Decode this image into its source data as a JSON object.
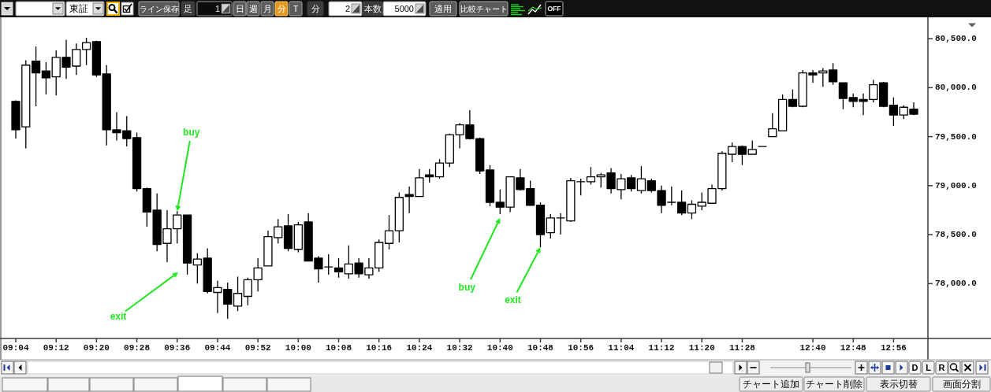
{
  "chart_data": {
    "type": "candlestick",
    "categories": [
      "09:04",
      null,
      null,
      null,
      "09:12",
      null,
      null,
      null,
      "09:20",
      null,
      null,
      null,
      "09:28",
      null,
      null,
      null,
      "09:36",
      null,
      null,
      null,
      "09:44",
      null,
      null,
      null,
      "09:52",
      null,
      null,
      null,
      "10:00",
      null,
      null,
      null,
      "10:08",
      null,
      null,
      null,
      "10:16",
      null,
      null,
      null,
      "10:24",
      null,
      null,
      null,
      "10:32",
      null,
      null,
      null,
      "10:40",
      null,
      null,
      null,
      "10:48",
      null,
      null,
      null,
      "10:56",
      null,
      null,
      null,
      "11:04",
      null,
      null,
      null,
      "11:12",
      null,
      null,
      null,
      "11:20",
      null,
      null,
      null,
      "11:28",
      null,
      null,
      null,
      null,
      null,
      null,
      "12:40",
      null,
      null,
      null,
      "12:48",
      null,
      null,
      null,
      "12:56",
      null,
      null
    ],
    "ohlc": [
      [
        79860,
        79870,
        79480,
        79570
      ],
      [
        79600,
        80280,
        79380,
        80230
      ],
      [
        80270,
        80420,
        79810,
        80150
      ],
      [
        80170,
        80260,
        79930,
        80100
      ],
      [
        80110,
        80380,
        79920,
        80310
      ],
      [
        80310,
        80490,
        80090,
        80210
      ],
      [
        80220,
        80450,
        80130,
        80390
      ],
      [
        80390,
        80510,
        80230,
        80460
      ],
      [
        80470,
        80480,
        80110,
        80130
      ],
      [
        80140,
        80230,
        79410,
        79570
      ],
      [
        79570,
        79750,
        79460,
        79540
      ],
      [
        79560,
        79710,
        79400,
        79480
      ],
      [
        79490,
        79540,
        78940,
        78970
      ],
      [
        78970,
        78980,
        78580,
        78730
      ],
      [
        78750,
        78920,
        78330,
        78400
      ],
      [
        78410,
        78750,
        78220,
        78560
      ],
      [
        78560,
        78740,
        78410,
        78700
      ],
      [
        78700,
        78700,
        78090,
        78210
      ],
      [
        78190,
        78310,
        78000,
        78250
      ],
      [
        78260,
        78360,
        77900,
        77920
      ],
      [
        77910,
        78030,
        77700,
        77960
      ],
      [
        77940,
        78010,
        77640,
        77790
      ],
      [
        77770,
        78070,
        77720,
        77900
      ],
      [
        77870,
        78060,
        77780,
        78040
      ],
      [
        78040,
        78260,
        77920,
        78160
      ],
      [
        78180,
        78540,
        78180,
        78480
      ],
      [
        78470,
        78660,
        78410,
        78580
      ],
      [
        78590,
        78710,
        78330,
        78360
      ],
      [
        78350,
        78630,
        78320,
        78600
      ],
      [
        78630,
        78720,
        78230,
        78230
      ],
      [
        78260,
        78280,
        78010,
        78150
      ],
      [
        78170,
        78300,
        78090,
        78170
      ],
      [
        78160,
        78260,
        78060,
        78120
      ],
      [
        78100,
        78390,
        78050,
        78200
      ],
      [
        78210,
        78260,
        78060,
        78100
      ],
      [
        78090,
        78260,
        78050,
        78160
      ],
      [
        78160,
        78450,
        78120,
        78420
      ],
      [
        78410,
        78700,
        78350,
        78540
      ],
      [
        78540,
        78930,
        78420,
        78880
      ],
      [
        78910,
        78990,
        78720,
        78890
      ],
      [
        78890,
        79170,
        78890,
        79080
      ],
      [
        79110,
        79170,
        79030,
        79090
      ],
      [
        79090,
        79270,
        79070,
        79230
      ],
      [
        79230,
        79530,
        79190,
        79520
      ],
      [
        79520,
        79640,
        79380,
        79620
      ],
      [
        79620,
        79770,
        79470,
        79480
      ],
      [
        79480,
        79490,
        79120,
        79150
      ],
      [
        79160,
        79210,
        78790,
        78830
      ],
      [
        78830,
        78960,
        78710,
        78780
      ],
      [
        78780,
        79090,
        78730,
        79090
      ],
      [
        79080,
        79170,
        78950,
        78960
      ],
      [
        78970,
        79050,
        78800,
        78800
      ],
      [
        78800,
        78830,
        78370,
        78500
      ],
      [
        78520,
        78710,
        78460,
        78670
      ],
      [
        78670,
        78720,
        78500,
        78670
      ],
      [
        78640,
        79080,
        78630,
        79050
      ],
      [
        79040,
        79070,
        78900,
        79040
      ],
      [
        79040,
        79190,
        79010,
        79090
      ],
      [
        79090,
        79130,
        78980,
        79110
      ],
      [
        79130,
        79180,
        78920,
        78970
      ],
      [
        78960,
        79120,
        78860,
        79070
      ],
      [
        79080,
        79110,
        78940,
        78970
      ],
      [
        78950,
        79200,
        78920,
        79070
      ],
      [
        79050,
        79070,
        78930,
        78950
      ],
      [
        78950,
        79000,
        78720,
        78800
      ],
      [
        78830,
        78990,
        78800,
        78830
      ],
      [
        78830,
        78950,
        78700,
        78720
      ],
      [
        78720,
        78850,
        78660,
        78810
      ],
      [
        78790,
        78930,
        78750,
        78830
      ],
      [
        78820,
        79010,
        78820,
        78970
      ],
      [
        78970,
        79350,
        78950,
        79330
      ],
      [
        79320,
        79440,
        79240,
        79400
      ],
      [
        79400,
        79410,
        79210,
        79320
      ],
      [
        79320,
        79460,
        79320,
        79370
      ],
      [
        79400,
        79400,
        79400,
        79400
      ],
      [
        79500,
        79740,
        79500,
        79580
      ],
      [
        79560,
        79930,
        79560,
        79880
      ],
      [
        79880,
        79980,
        79800,
        79810
      ],
      [
        79810,
        80180,
        79800,
        80150
      ],
      [
        80150,
        80180,
        80050,
        80130
      ],
      [
        80150,
        80200,
        80010,
        80170
      ],
      [
        80180,
        80250,
        80030,
        80060
      ],
      [
        80050,
        80050,
        79780,
        79890
      ],
      [
        79900,
        79940,
        79800,
        79860
      ],
      [
        79880,
        79940,
        79720,
        79860
      ],
      [
        79880,
        80080,
        79850,
        80030
      ],
      [
        80050,
        80060,
        79800,
        79810
      ],
      [
        79820,
        79900,
        79610,
        79720
      ],
      [
        79720,
        79820,
        79680,
        79800
      ],
      [
        79780,
        79850,
        79720,
        79730
      ]
    ],
    "ylim": [
      77440,
      80710
    ],
    "yticks": [
      {
        "value": 78000,
        "label": "78,000.0"
      },
      {
        "value": 78500,
        "label": "78,500.0"
      },
      {
        "value": 79000,
        "label": "79,000.0"
      },
      {
        "value": 79500,
        "label": "79,500.0"
      },
      {
        "value": 80000,
        "label": "80,000.0"
      },
      {
        "value": 80500,
        "label": "80,500.0"
      }
    ],
    "annotations": [
      {
        "text": "buy",
        "x": "09:36",
        "y": 78740
      },
      {
        "text": "buy",
        "x": "10:40",
        "y": 78670
      },
      {
        "text": "exit",
        "x": "10:48",
        "y": 78370
      },
      "exit",
      "東証",
      "ライン保存",
      "足",
      "1",
      "日",
      "週",
      "月",
      "分",
      "T",
      "分",
      "2",
      "本数",
      "5000",
      "適用",
      "比較チャート",
      "OFF",
      "D",
      "L",
      "R",
      "チャート追加",
      "チャート削除",
      "表示切替",
      "画面分割"
    ]
  }
}
